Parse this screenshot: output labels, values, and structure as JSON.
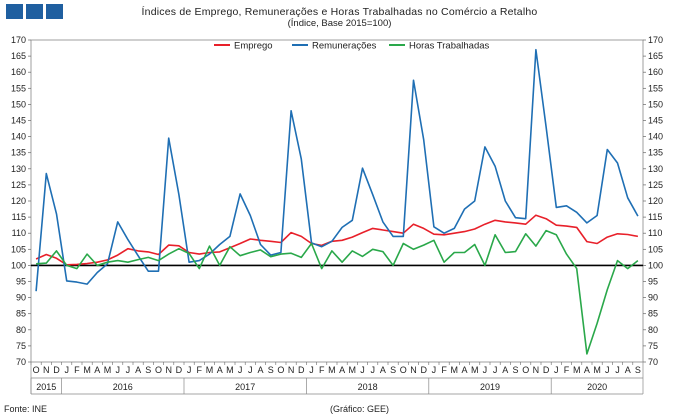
{
  "header": {
    "title": "Índices de Emprego, Remunerações e Horas Trabalhadas no Comércio a Retalho",
    "subtitle": "(Índice, Base 2015=100)"
  },
  "footer": {
    "source": "Fonte: INE",
    "credit": "(Gráfico: GEE)"
  },
  "colors": {
    "emprego": "#e8202a",
    "remuneracoes": "#1f6fb4",
    "horas": "#2aa84a",
    "logo": "#1f5fa0"
  },
  "chart_data": {
    "type": "line",
    "ylim": [
      70,
      170
    ],
    "yticks": [
      70,
      75,
      80,
      85,
      90,
      95,
      100,
      105,
      110,
      115,
      120,
      125,
      130,
      135,
      140,
      145,
      150,
      155,
      160,
      165,
      170
    ],
    "reference_line": 100,
    "legend_position": "top-center",
    "x": [
      "O",
      "N",
      "D",
      "J",
      "F",
      "M",
      "A",
      "M",
      "J",
      "J",
      "A",
      "S",
      "O",
      "N",
      "D",
      "J",
      "F",
      "M",
      "A",
      "M",
      "J",
      "J",
      "A",
      "S",
      "O",
      "N",
      "D",
      "J",
      "F",
      "M",
      "A",
      "M",
      "J",
      "J",
      "A",
      "S",
      "O",
      "N",
      "D",
      "J",
      "F",
      "M",
      "A",
      "M",
      "J",
      "J",
      "A",
      "S",
      "O",
      "N",
      "D",
      "J",
      "F",
      "M",
      "A",
      "M",
      "J",
      "J",
      "A",
      "S"
    ],
    "year_groups": [
      {
        "label": "2015",
        "start": 0,
        "end": 2
      },
      {
        "label": "2016",
        "start": 3,
        "end": 14
      },
      {
        "label": "2017",
        "start": 15,
        "end": 26
      },
      {
        "label": "2018",
        "start": 27,
        "end": 38
      },
      {
        "label": "2019",
        "start": 39,
        "end": 50
      },
      {
        "label": "2020",
        "start": 51,
        "end": 59
      }
    ],
    "series": [
      {
        "name": "Emprego",
        "color": "#e8202a",
        "values": [
          102.0,
          103.4,
          102.2,
          100.2,
          100.3,
          100.6,
          101.0,
          101.7,
          103.2,
          105.2,
          104.5,
          104.2,
          103.4,
          106.3,
          106.1,
          104.0,
          103.5,
          104.0,
          104.2,
          105.5,
          106.8,
          108.2,
          107.8,
          107.5,
          107.1,
          110.2,
          109.0,
          106.8,
          106.2,
          107.5,
          107.8,
          108.8,
          110.2,
          111.5,
          111.0,
          110.5,
          110.0,
          112.8,
          111.5,
          109.7,
          109.5,
          110.0,
          110.5,
          111.3,
          112.8,
          114.0,
          113.5,
          113.2,
          112.8,
          115.6,
          114.5,
          112.5,
          112.2,
          111.8,
          107.4,
          106.8,
          108.8,
          109.8,
          109.6,
          109.0
        ]
      },
      {
        "name": "Remunerações",
        "color": "#1f6fb4",
        "values": [
          92.0,
          128.5,
          116.0,
          95.2,
          94.8,
          94.2,
          97.8,
          100.5,
          113.5,
          108.0,
          103.0,
          98.2,
          98.2,
          139.5,
          122.0,
          101.0,
          101.5,
          103.5,
          106.5,
          109.0,
          122.2,
          115.5,
          106.5,
          103.2,
          104.0,
          148.0,
          133.0,
          107.0,
          105.8,
          107.5,
          111.8,
          114.0,
          130.2,
          122.0,
          113.5,
          109.0,
          109.0,
          157.5,
          139.0,
          112.0,
          110.0,
          111.5,
          117.5,
          120.0,
          136.8,
          130.8,
          120.0,
          114.8,
          114.5,
          167.0,
          143.0,
          118.0,
          118.5,
          116.5,
          113.2,
          115.5,
          136.0,
          131.8,
          121.0,
          115.3
        ]
      },
      {
        "name": "Horas Trabalhadas",
        "color": "#2aa84a",
        "values": [
          100.5,
          100.7,
          104.5,
          100.0,
          99.0,
          103.5,
          100.0,
          101.0,
          101.5,
          101.0,
          101.8,
          102.5,
          101.5,
          103.5,
          105.2,
          103.7,
          99.0,
          106.0,
          100.0,
          105.8,
          103.0,
          104.0,
          104.8,
          102.7,
          103.5,
          103.8,
          102.5,
          106.8,
          99.0,
          104.5,
          101.0,
          104.5,
          102.8,
          105.0,
          104.3,
          100.0,
          106.8,
          105.0,
          106.3,
          107.8,
          101.0,
          104.0,
          104.0,
          106.5,
          100.0,
          109.5,
          104.0,
          104.3,
          109.8,
          106.0,
          110.8,
          109.5,
          103.5,
          99.0,
          72.5,
          82.0,
          92.5,
          101.5,
          99.0,
          101.5
        ]
      }
    ]
  }
}
